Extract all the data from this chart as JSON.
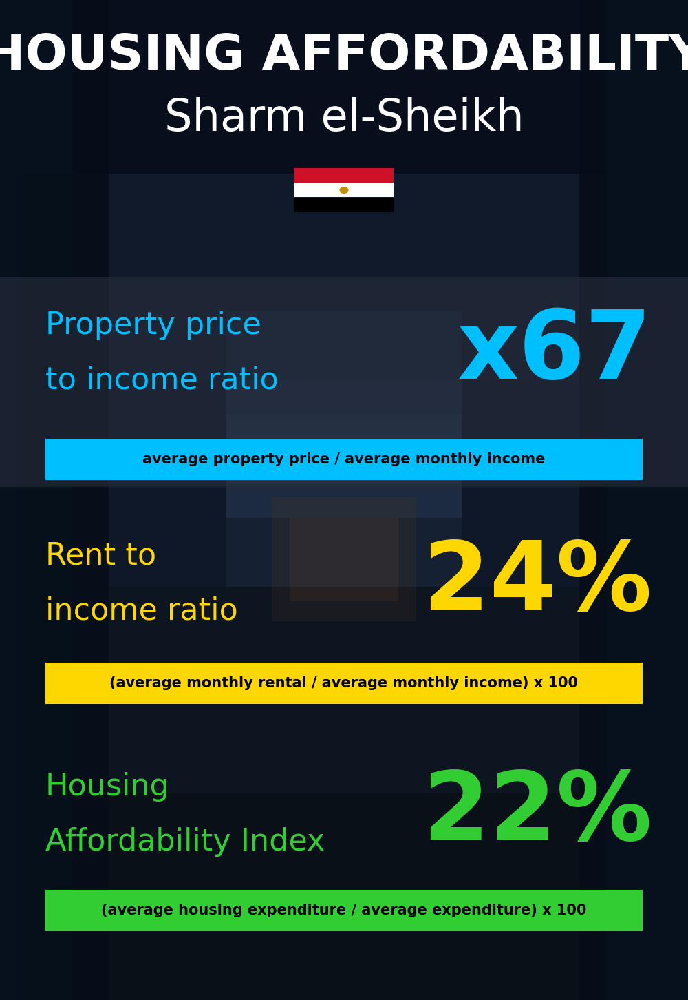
{
  "title_line1": "HOUSING AFFORDABILITY",
  "title_line2": "Sharm el-Sheikh",
  "sections": [
    {
      "label_line1": "Property price",
      "label_line2": "to income ratio",
      "value": "x67",
      "label_color": "#00BFFF",
      "value_color": "#00BFFF",
      "banner_text": "average property price / average monthly income",
      "banner_bg": "#00BFFF",
      "banner_text_color": "#000000"
    },
    {
      "label_line1": "Rent to",
      "label_line2": "income ratio",
      "value": "24%",
      "label_color": "#FFD700",
      "value_color": "#FFD700",
      "banner_text": "(average monthly rental / average monthly income) x 100",
      "banner_bg": "#FFD700",
      "banner_text_color": "#000000"
    },
    {
      "label_line1": "Housing",
      "label_line2": "Affordability Index",
      "value": "22%",
      "label_color": "#32CD32",
      "value_color": "#32CD32",
      "banner_text": "(average housing expenditure / average expenditure) x 100",
      "banner_bg": "#32CD32",
      "banner_text_color": "#000000"
    }
  ],
  "bg_color": "#0a0f1e",
  "fig_width": 10.0,
  "fig_height": 14.52
}
